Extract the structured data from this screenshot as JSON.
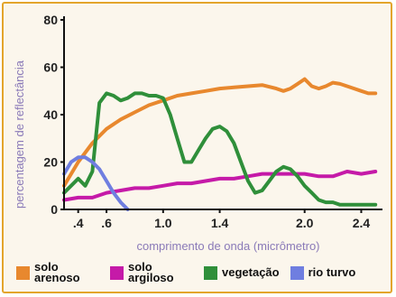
{
  "chart_data": {
    "type": "line",
    "ylabel": "percentagem de reflectância",
    "xlabel": "comprimento de onda (micrômetro)",
    "xlim": [
      0.3,
      2.55
    ],
    "ylim": [
      0,
      80
    ],
    "x_ticks": [
      {
        "value": 0.4,
        "label": ".4"
      },
      {
        "value": 0.6,
        "label": ".6"
      },
      {
        "value": 1.0,
        "label": "1.0"
      },
      {
        "value": 1.4,
        "label": "1.4"
      },
      {
        "value": 2.0,
        "label": "2.0"
      },
      {
        "value": 2.4,
        "label": "2.4"
      }
    ],
    "y_ticks": [
      0,
      20,
      40,
      60,
      80
    ],
    "grid": false,
    "legend_position": "bottom",
    "series": [
      {
        "name": "solo arenoso",
        "color": "#e8882e",
        "x": [
          0.3,
          0.4,
          0.5,
          0.6,
          0.7,
          0.8,
          0.9,
          1.0,
          1.1,
          1.2,
          1.3,
          1.4,
          1.5,
          1.6,
          1.7,
          1.8,
          1.85,
          1.9,
          1.95,
          2.0,
          2.05,
          2.1,
          2.15,
          2.2,
          2.25,
          2.3,
          2.35,
          2.4,
          2.45,
          2.5
        ],
        "y": [
          10,
          20,
          28,
          34,
          38,
          41,
          44,
          46,
          48,
          49,
          50,
          51,
          51.5,
          52,
          52.5,
          51,
          50,
          51,
          53,
          55,
          52,
          51,
          52,
          53.5,
          53,
          52,
          51,
          50,
          49,
          49
        ]
      },
      {
        "name": "solo argiloso",
        "color": "#c51aa8",
        "x": [
          0.3,
          0.4,
          0.5,
          0.6,
          0.7,
          0.8,
          0.9,
          1.0,
          1.1,
          1.2,
          1.3,
          1.4,
          1.5,
          1.6,
          1.7,
          1.8,
          1.9,
          2.0,
          2.1,
          2.2,
          2.3,
          2.4,
          2.5
        ],
        "y": [
          4,
          5,
          5,
          7,
          8,
          9,
          9,
          10,
          11,
          11,
          12,
          13,
          13,
          14,
          15,
          15,
          15,
          15,
          14,
          14,
          16,
          15,
          16
        ]
      },
      {
        "name": "vegetação",
        "color": "#2f8f3a",
        "x": [
          0.3,
          0.35,
          0.4,
          0.45,
          0.5,
          0.55,
          0.6,
          0.65,
          0.7,
          0.75,
          0.8,
          0.85,
          0.9,
          0.95,
          1.0,
          1.05,
          1.1,
          1.15,
          1.2,
          1.25,
          1.3,
          1.35,
          1.4,
          1.45,
          1.5,
          1.55,
          1.6,
          1.65,
          1.7,
          1.75,
          1.8,
          1.85,
          1.9,
          1.95,
          2.0,
          2.05,
          2.1,
          2.15,
          2.2,
          2.25,
          2.3,
          2.35,
          2.4,
          2.45,
          2.5
        ],
        "y": [
          7,
          10,
          13,
          10,
          16,
          45,
          49,
          48,
          46,
          47,
          49,
          49,
          48,
          48,
          47,
          40,
          30,
          20,
          20,
          25,
          30,
          34,
          35,
          33,
          28,
          20,
          12,
          7,
          8,
          12,
          16,
          18,
          17,
          14,
          10,
          7,
          4,
          3,
          3,
          2,
          2,
          2,
          2,
          2,
          2
        ]
      },
      {
        "name": "rio turvo",
        "color": "#6f7ee0",
        "x": [
          0.3,
          0.35,
          0.4,
          0.45,
          0.5,
          0.55,
          0.6,
          0.65,
          0.7,
          0.75
        ],
        "y": [
          15,
          20,
          22,
          22,
          20,
          17,
          12,
          7,
          3,
          0
        ]
      }
    ]
  },
  "legend": {
    "items": [
      {
        "label": "solo arenoso",
        "color": "#e8882e"
      },
      {
        "label": "solo argiloso",
        "color": "#c51aa8"
      },
      {
        "label": "vegetação",
        "color": "#2f8f3a"
      },
      {
        "label": "rio turvo",
        "color": "#6f7ee0"
      }
    ]
  }
}
